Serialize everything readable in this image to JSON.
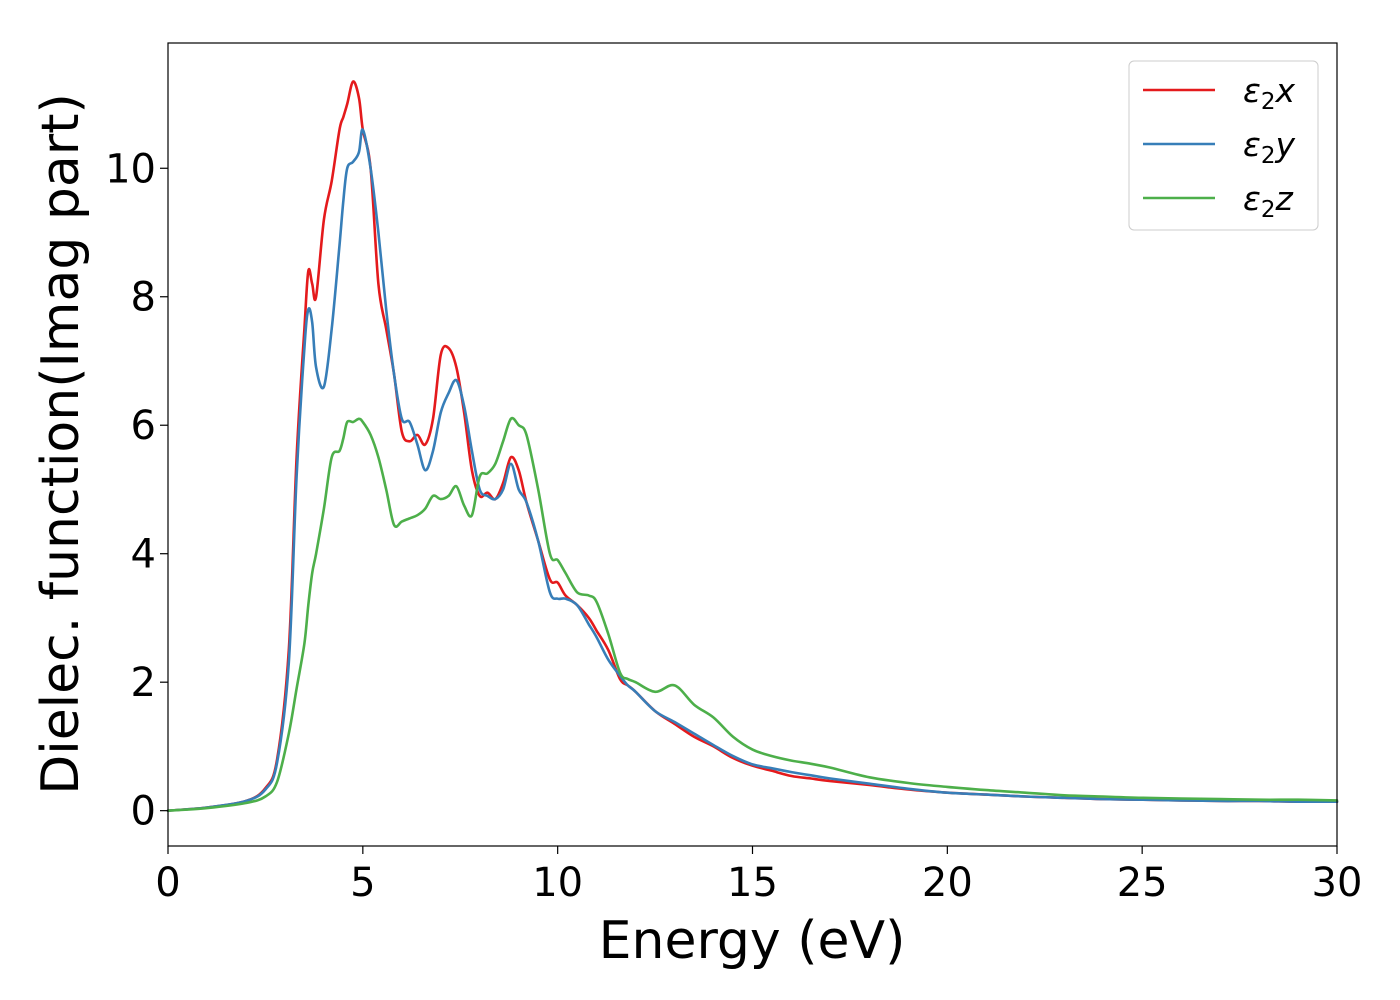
{
  "chart_data": {
    "type": "line",
    "xlabel": "Energy (eV)",
    "ylabel": "Dielec. function(Imag part)",
    "xlim": [
      0,
      30
    ],
    "ylim": [
      -0.55,
      11.95
    ],
    "xticks": [
      "0",
      "5",
      "10",
      "15",
      "20",
      "25",
      "30"
    ],
    "yticks": [
      "0",
      "2",
      "4",
      "6",
      "8",
      "10"
    ],
    "grid": false,
    "legend_position": "top-right",
    "series": [
      {
        "name": "ε₂x",
        "legend": {
          "main": "ε",
          "sub": "2",
          "suffix": "x"
        },
        "color": "#e41a1c",
        "x": [
          0,
          1,
          2,
          2.5,
          2.8,
          3.1,
          3.3,
          3.5,
          3.6,
          3.7,
          3.8,
          4.0,
          4.2,
          4.4,
          4.5,
          4.6,
          4.75,
          4.9,
          5.0,
          5.2,
          5.4,
          5.6,
          5.8,
          6.0,
          6.2,
          6.4,
          6.6,
          6.8,
          7.0,
          7.2,
          7.4,
          7.6,
          7.8,
          8.0,
          8.2,
          8.4,
          8.6,
          8.8,
          9.0,
          9.2,
          9.5,
          9.8,
          10.0,
          10.2,
          10.5,
          10.8,
          11.0,
          11.3,
          11.6,
          11.8,
          12.0,
          12.5,
          13.0,
          13.5,
          14.0,
          14.5,
          15.0,
          15.5,
          16.0,
          16.5,
          17.0,
          18.0,
          19.0,
          20.0,
          21.0,
          22.0,
          23.0,
          24.0,
          25.0,
          26.0,
          27.0,
          28.0,
          29.0,
          30.0
        ],
        "y": [
          0,
          0.05,
          0.15,
          0.35,
          0.8,
          2.5,
          5.5,
          7.5,
          8.4,
          8.2,
          8.0,
          9.2,
          9.8,
          10.6,
          10.8,
          11.0,
          11.35,
          11.1,
          10.6,
          10.0,
          8.2,
          7.5,
          6.8,
          5.9,
          5.75,
          5.85,
          5.7,
          6.1,
          7.1,
          7.2,
          6.9,
          6.2,
          5.3,
          4.9,
          4.95,
          4.85,
          5.1,
          5.5,
          5.3,
          4.8,
          4.2,
          3.6,
          3.55,
          3.35,
          3.2,
          3.0,
          2.8,
          2.5,
          2.05,
          1.95,
          1.85,
          1.55,
          1.35,
          1.15,
          1.0,
          0.82,
          0.7,
          0.62,
          0.54,
          0.5,
          0.46,
          0.4,
          0.33,
          0.28,
          0.25,
          0.22,
          0.2,
          0.18,
          0.17,
          0.16,
          0.15,
          0.15,
          0.14,
          0.14
        ]
      },
      {
        "name": "ε₂y",
        "legend": {
          "main": "ε",
          "sub": "2",
          "suffix": "y"
        },
        "color": "#377eb8",
        "x": [
          0,
          1,
          2,
          2.5,
          2.8,
          3.1,
          3.3,
          3.5,
          3.6,
          3.7,
          3.8,
          4.0,
          4.2,
          4.4,
          4.5,
          4.6,
          4.75,
          4.9,
          5.0,
          5.2,
          5.4,
          5.6,
          5.8,
          6.0,
          6.2,
          6.4,
          6.6,
          6.8,
          7.0,
          7.2,
          7.4,
          7.6,
          7.8,
          8.0,
          8.2,
          8.4,
          8.6,
          8.8,
          9.0,
          9.2,
          9.5,
          9.8,
          10.0,
          10.2,
          10.5,
          10.8,
          11.0,
          11.3,
          11.6,
          11.8,
          12.0,
          12.5,
          13.0,
          13.5,
          14.0,
          14.5,
          15.0,
          15.5,
          16.0,
          16.5,
          17.0,
          18.0,
          19.0,
          20.0,
          21.0,
          22.0,
          23.0,
          24.0,
          25.0,
          26.0,
          27.0,
          28.0,
          29.0,
          30.0
        ],
        "y": [
          0,
          0.05,
          0.15,
          0.33,
          0.75,
          2.3,
          5.2,
          7.2,
          7.8,
          7.6,
          6.9,
          6.6,
          7.5,
          8.8,
          9.5,
          10.0,
          10.1,
          10.25,
          10.6,
          10.0,
          9.0,
          7.8,
          6.8,
          6.1,
          6.05,
          5.7,
          5.3,
          5.6,
          6.2,
          6.5,
          6.7,
          6.3,
          5.6,
          5.0,
          4.9,
          4.85,
          5.0,
          5.4,
          5.0,
          4.8,
          4.2,
          3.4,
          3.3,
          3.3,
          3.2,
          2.9,
          2.7,
          2.35,
          2.1,
          1.95,
          1.85,
          1.55,
          1.38,
          1.2,
          1.02,
          0.85,
          0.72,
          0.66,
          0.6,
          0.55,
          0.5,
          0.42,
          0.34,
          0.28,
          0.25,
          0.22,
          0.2,
          0.18,
          0.17,
          0.16,
          0.15,
          0.15,
          0.14,
          0.14
        ]
      },
      {
        "name": "ε₂z",
        "legend": {
          "main": "ε",
          "sub": "2",
          "suffix": "z"
        },
        "color": "#4daf4a",
        "x": [
          0,
          1,
          2,
          2.5,
          2.8,
          3.1,
          3.3,
          3.5,
          3.6,
          3.7,
          3.8,
          4.0,
          4.2,
          4.4,
          4.5,
          4.6,
          4.75,
          4.9,
          5.0,
          5.2,
          5.4,
          5.6,
          5.8,
          6.0,
          6.2,
          6.4,
          6.6,
          6.8,
          7.0,
          7.2,
          7.4,
          7.6,
          7.8,
          8.0,
          8.2,
          8.4,
          8.6,
          8.8,
          9.0,
          9.2,
          9.5,
          9.8,
          10.0,
          10.2,
          10.5,
          10.8,
          11.0,
          11.3,
          11.6,
          11.8,
          12.0,
          12.5,
          13.0,
          13.5,
          14.0,
          14.5,
          15.0,
          15.5,
          16.0,
          16.5,
          17.0,
          18.0,
          19.0,
          20.0,
          21.0,
          22.0,
          23.0,
          24.0,
          25.0,
          26.0,
          27.0,
          28.0,
          29.0,
          30.0
        ],
        "y": [
          0,
          0.04,
          0.12,
          0.22,
          0.45,
          1.2,
          1.9,
          2.6,
          3.2,
          3.7,
          4.0,
          4.7,
          5.5,
          5.6,
          5.8,
          6.05,
          6.05,
          6.1,
          6.05,
          5.85,
          5.5,
          5.0,
          4.45,
          4.5,
          4.55,
          4.6,
          4.7,
          4.9,
          4.85,
          4.9,
          5.05,
          4.75,
          4.6,
          5.2,
          5.25,
          5.4,
          5.75,
          6.1,
          6.0,
          5.85,
          5.0,
          4.0,
          3.9,
          3.7,
          3.4,
          3.35,
          3.25,
          2.75,
          2.15,
          2.05,
          2.0,
          1.85,
          1.95,
          1.65,
          1.45,
          1.15,
          0.95,
          0.85,
          0.78,
          0.73,
          0.67,
          0.52,
          0.43,
          0.37,
          0.32,
          0.28,
          0.24,
          0.22,
          0.2,
          0.19,
          0.18,
          0.17,
          0.17,
          0.16
        ]
      }
    ]
  }
}
